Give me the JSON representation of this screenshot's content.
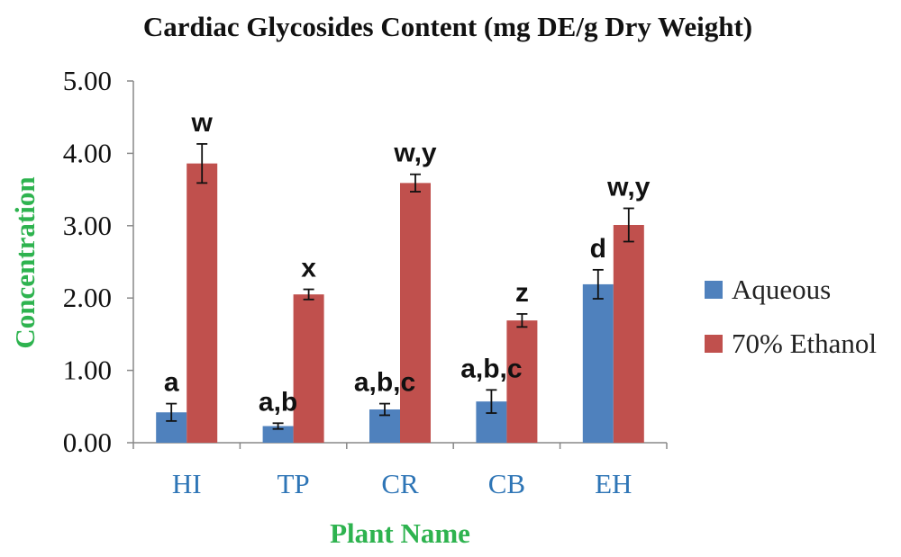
{
  "chart_data": {
    "type": "bar",
    "title": "Cardiac Glycosides Content (mg DE/g Dry Weight)",
    "xlabel": "Plant Name",
    "ylabel": "Concentration",
    "categories": [
      "HI",
      "TP",
      "CR",
      "CB",
      "EH"
    ],
    "ylim": [
      0,
      5
    ],
    "yticks": [
      "0.00",
      "1.00",
      "2.00",
      "3.00",
      "4.00",
      "5.00"
    ],
    "grid": false,
    "legend_position": "right",
    "series": [
      {
        "name": "Aqueous",
        "color": "#4F81BD",
        "values": [
          0.42,
          0.23,
          0.46,
          0.57,
          2.19
        ],
        "errors": [
          0.12,
          0.04,
          0.08,
          0.16,
          0.2
        ],
        "labels": [
          "a",
          "a,b",
          "a,b,c",
          "a,b,c",
          "d"
        ]
      },
      {
        "name": "70% Ethanol",
        "color": "#C0504D",
        "values": [
          3.86,
          2.05,
          3.59,
          1.69,
          3.01
        ],
        "errors": [
          0.27,
          0.07,
          0.12,
          0.09,
          0.23
        ],
        "labels": [
          "w",
          "x",
          "w,y",
          "z",
          "w,y"
        ]
      }
    ],
    "colors": {
      "axis_title": "#2EB34F",
      "category_labels": "#2E75B6",
      "axis_line": "#888888"
    }
  }
}
